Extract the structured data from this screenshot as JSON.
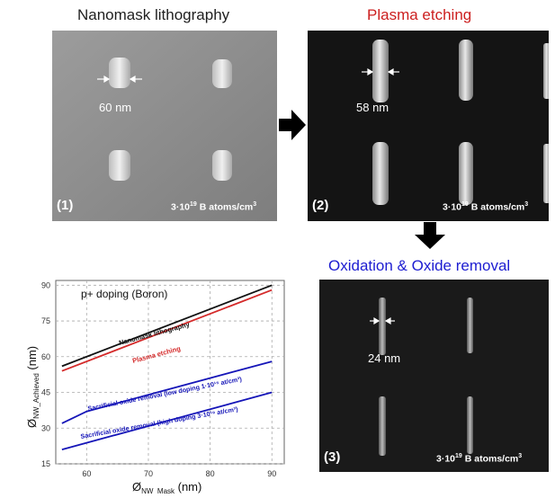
{
  "panels": [
    {
      "title": "Nanomask lithography",
      "title_color": "#1f1f1f",
      "number": "(1)",
      "measurement": "60 nm",
      "concentration_prefix": "3·10",
      "concentration_exp": "19",
      "concentration_suffix": " B atoms/cm",
      "concentration_unit_exp": "3"
    },
    {
      "title": "Plasma etching",
      "title_color": "#cc1f1f",
      "number": "(2)",
      "measurement": "58 nm",
      "concentration_prefix": "3·10",
      "concentration_exp": "19",
      "concentration_suffix": " B atoms/cm",
      "concentration_unit_exp": "3"
    },
    {
      "title": "Oxidation & Oxide removal",
      "title_color": "#1d1dd1",
      "number": "(3)",
      "measurement": "24 nm",
      "concentration_prefix": "3·10",
      "concentration_exp": "19",
      "concentration_suffix": " B atoms/cm",
      "concentration_unit_exp": "3"
    }
  ],
  "chart_data": {
    "type": "line",
    "annotation": "p+ doping (Boron)",
    "xlabel_main": "Ø",
    "xlabel_sub": "NW_Mask",
    "xlabel_unit": " (nm)",
    "ylabel_main": "Ø",
    "ylabel_sub": "NW_Achieved",
    "ylabel_unit": " (nm)",
    "xlim": [
      55,
      92
    ],
    "ylim": [
      15,
      92
    ],
    "xticks": [
      60,
      70,
      80,
      90
    ],
    "yticks": [
      15,
      30,
      45,
      60,
      75,
      90
    ],
    "grid": "dashed",
    "series": [
      {
        "name": "Nanomask lithography",
        "color": "#111111",
        "x": [
          56,
          90
        ],
        "y": [
          56,
          90
        ]
      },
      {
        "name": "Plasma etching",
        "color": "#d42a2a",
        "x": [
          56,
          90
        ],
        "y": [
          54,
          88
        ]
      },
      {
        "name": "Sacrificial oxide removal (low doping 1·10¹⁵ at/cm³)",
        "color": "#1515b8",
        "x": [
          56,
          60,
          90
        ],
        "y": [
          32,
          37,
          58
        ]
      },
      {
        "name": "Sacrificial oxide removal (high doping 3·10¹⁹ at/cm³)",
        "color": "#1515b8",
        "x": [
          56,
          90
        ],
        "y": [
          21,
          45
        ]
      }
    ]
  },
  "colors": {
    "black_arrow": "#000000"
  }
}
